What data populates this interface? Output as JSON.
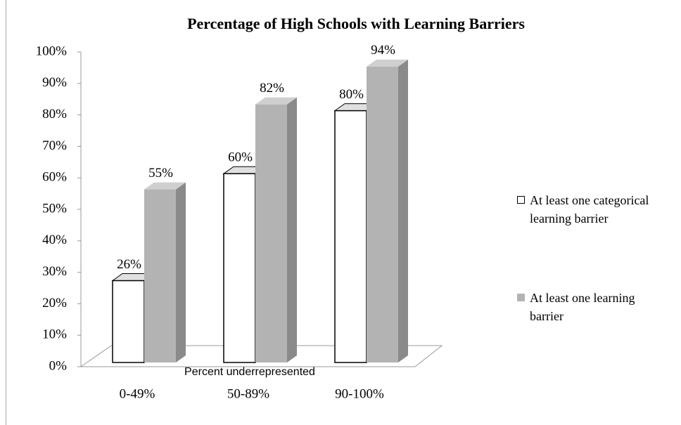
{
  "chart_data": {
    "type": "bar3d",
    "title": "Percentage of High Schools with Learning Barriers",
    "x_label": "Percent underrepresented",
    "categories": [
      "0-49%",
      "50-89%",
      "90-100%"
    ],
    "series": [
      {
        "name": "At least one categorical learning barrier",
        "color": "#ffffff",
        "values": [
          26,
          60,
          80
        ],
        "value_labels": [
          "26%",
          "60%",
          "80%"
        ]
      },
      {
        "name": "At least one learning barrier",
        "color": "#b3b3b3",
        "values": [
          55,
          82,
          94
        ],
        "value_labels": [
          "55%",
          "82%",
          "94%"
        ]
      }
    ],
    "ylim": [
      0,
      100
    ],
    "yticks": [
      {
        "value": 0,
        "label": "0%"
      },
      {
        "value": 10,
        "label": "10%"
      },
      {
        "value": 20,
        "label": "20%"
      },
      {
        "value": 30,
        "label": "30%"
      },
      {
        "value": 40,
        "label": "40%"
      },
      {
        "value": 50,
        "label": "50%"
      },
      {
        "value": 60,
        "label": "60%"
      },
      {
        "value": 70,
        "label": "70%"
      },
      {
        "value": 80,
        "label": "80%"
      },
      {
        "value": 90,
        "label": "90%"
      },
      {
        "value": 100,
        "label": "100%"
      }
    ],
    "legend": "right"
  }
}
